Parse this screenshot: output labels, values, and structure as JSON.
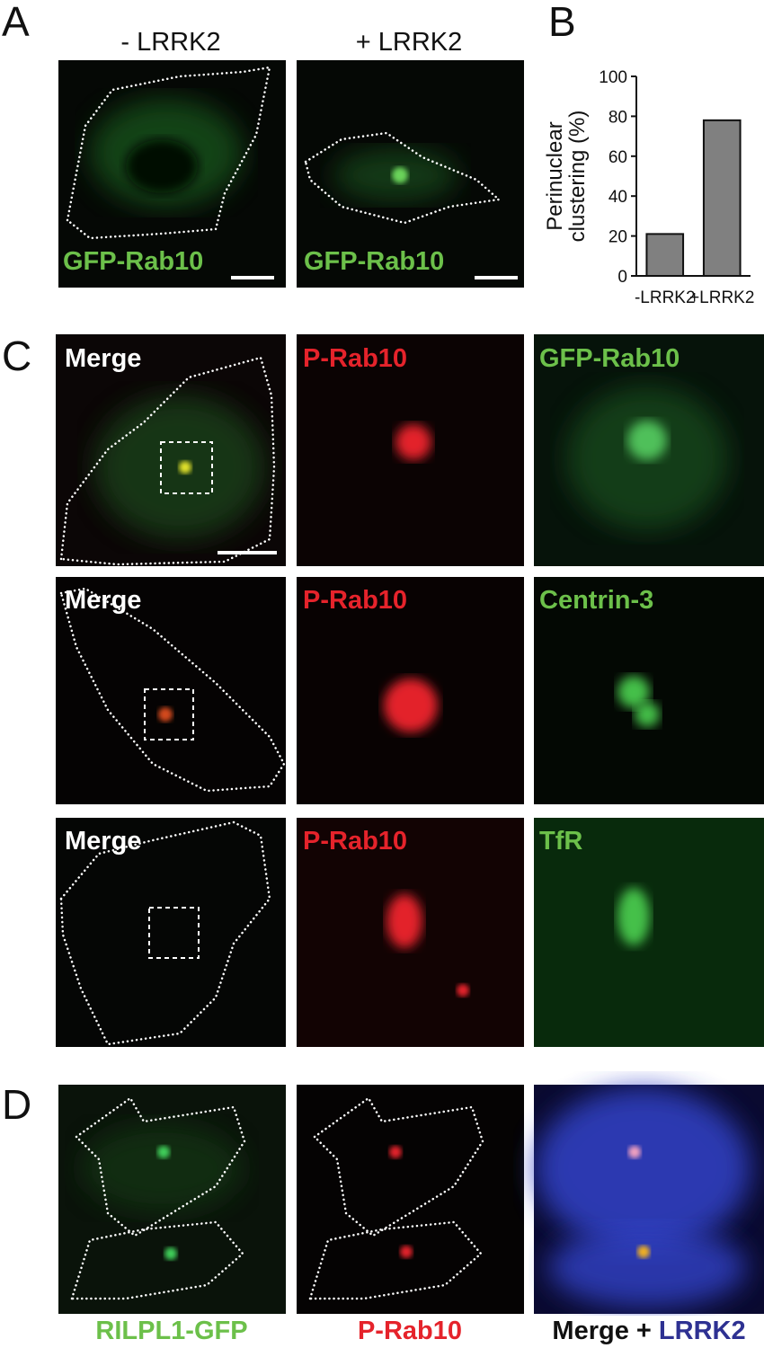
{
  "panel_letters": [
    "A",
    "B",
    "C",
    "D"
  ],
  "panel_a": {
    "columns": [
      "- LRRK2",
      "+ LRRK2"
    ],
    "image_labels": [
      "GFP-Rab10",
      "GFP-Rab10"
    ]
  },
  "chart_data": {
    "type": "bar",
    "ylabel": [
      "Perinuclear",
      "clustering (%)"
    ],
    "categories": [
      "-LRRK2",
      "+LRRK2"
    ],
    "values": [
      21,
      78
    ],
    "color": "#808080",
    "ylim": [
      0,
      100
    ],
    "yticks": [
      0,
      20,
      40,
      60,
      80,
      100
    ]
  },
  "panel_c": {
    "rows": [
      [
        "Merge",
        "P-Rab10",
        "GFP-Rab10"
      ],
      [
        "Merge",
        "P-Rab10",
        "Centrin-3"
      ],
      [
        "Merge",
        "P-Rab10",
        "TfR"
      ]
    ]
  },
  "panel_d": {
    "labels": [
      "RILPL1-GFP",
      "P-Rab10"
    ],
    "merge_label": [
      "Merge +",
      "LRRK2"
    ]
  }
}
